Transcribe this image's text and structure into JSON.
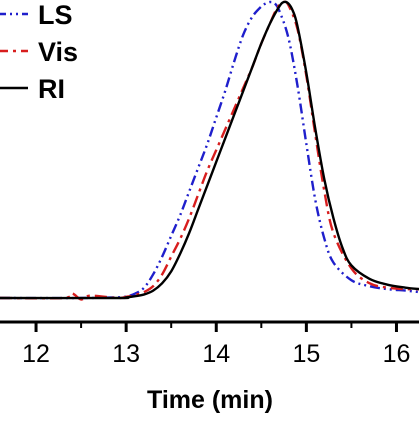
{
  "chart_data": {
    "type": "line",
    "title": "",
    "xlabel": "Time (min)",
    "ylabel": "",
    "xlim": [
      11.6,
      16.25
    ],
    "ylim": [
      -0.07,
      1.05
    ],
    "x_ticks": [
      12,
      13,
      14,
      15,
      16
    ],
    "x_tick_labels": [
      "12",
      "13",
      "14",
      "15",
      "16"
    ],
    "grid": false,
    "legend_position": "top-left",
    "series": [
      {
        "name": "LS",
        "color": "#1f1fcc",
        "dash": "dash-dot-dot",
        "x": [
          11.6,
          12.5,
          12.9,
          13.0,
          13.1,
          13.2,
          13.3,
          13.4,
          13.5,
          13.6,
          13.7,
          13.8,
          13.9,
          14.0,
          14.1,
          14.2,
          14.3,
          14.4,
          14.5,
          14.55,
          14.6,
          14.65,
          14.7,
          14.8,
          14.9,
          15.0,
          15.1,
          15.2,
          15.3,
          15.5,
          15.7,
          15.9,
          16.1,
          16.25
        ],
        "y": [
          0.0,
          0.0,
          0.002,
          0.005,
          0.015,
          0.035,
          0.08,
          0.14,
          0.21,
          0.28,
          0.36,
          0.44,
          0.52,
          0.61,
          0.7,
          0.8,
          0.89,
          0.95,
          0.985,
          0.995,
          1.0,
          0.995,
          0.97,
          0.88,
          0.72,
          0.52,
          0.33,
          0.2,
          0.12,
          0.06,
          0.04,
          0.03,
          0.025,
          0.02
        ]
      },
      {
        "name": "Vis",
        "color": "#d81e1e",
        "dash": "dash-dot",
        "x": [
          11.6,
          12.3,
          12.4,
          12.5,
          12.6,
          12.9,
          13.0,
          13.1,
          13.2,
          13.3,
          13.4,
          13.5,
          13.6,
          13.7,
          13.8,
          13.9,
          14.0,
          14.1,
          14.2,
          14.3,
          14.4,
          14.5,
          14.6,
          14.65,
          14.7,
          14.75,
          14.8,
          14.9,
          15.0,
          15.1,
          15.2,
          15.3,
          15.5,
          15.7,
          15.9,
          16.1,
          16.25
        ],
        "y": [
          0.0,
          0.0,
          0.015,
          -0.005,
          0.008,
          0.0,
          0.004,
          0.01,
          0.02,
          0.04,
          0.08,
          0.14,
          0.2,
          0.27,
          0.35,
          0.43,
          0.5,
          0.57,
          0.64,
          0.71,
          0.78,
          0.86,
          0.93,
          0.965,
          0.99,
          1.0,
          0.99,
          0.91,
          0.75,
          0.55,
          0.36,
          0.22,
          0.1,
          0.05,
          0.035,
          0.03,
          0.03
        ]
      },
      {
        "name": "RI",
        "color": "#000000",
        "dash": "solid",
        "x": [
          11.6,
          12.9,
          13.0,
          13.1,
          13.2,
          13.3,
          13.4,
          13.5,
          13.6,
          13.7,
          13.8,
          13.9,
          14.0,
          14.1,
          14.2,
          14.3,
          14.4,
          14.5,
          14.6,
          14.7,
          14.75,
          14.8,
          14.85,
          14.9,
          15.0,
          15.1,
          15.2,
          15.3,
          15.4,
          15.5,
          15.7,
          15.9,
          16.1,
          16.25
        ],
        "y": [
          0.0,
          0.0,
          0.002,
          0.006,
          0.012,
          0.025,
          0.05,
          0.09,
          0.15,
          0.22,
          0.3,
          0.38,
          0.46,
          0.54,
          0.62,
          0.7,
          0.78,
          0.86,
          0.93,
          0.985,
          1.0,
          0.995,
          0.97,
          0.92,
          0.76,
          0.57,
          0.4,
          0.27,
          0.17,
          0.11,
          0.065,
          0.045,
          0.035,
          0.03
        ]
      }
    ]
  }
}
